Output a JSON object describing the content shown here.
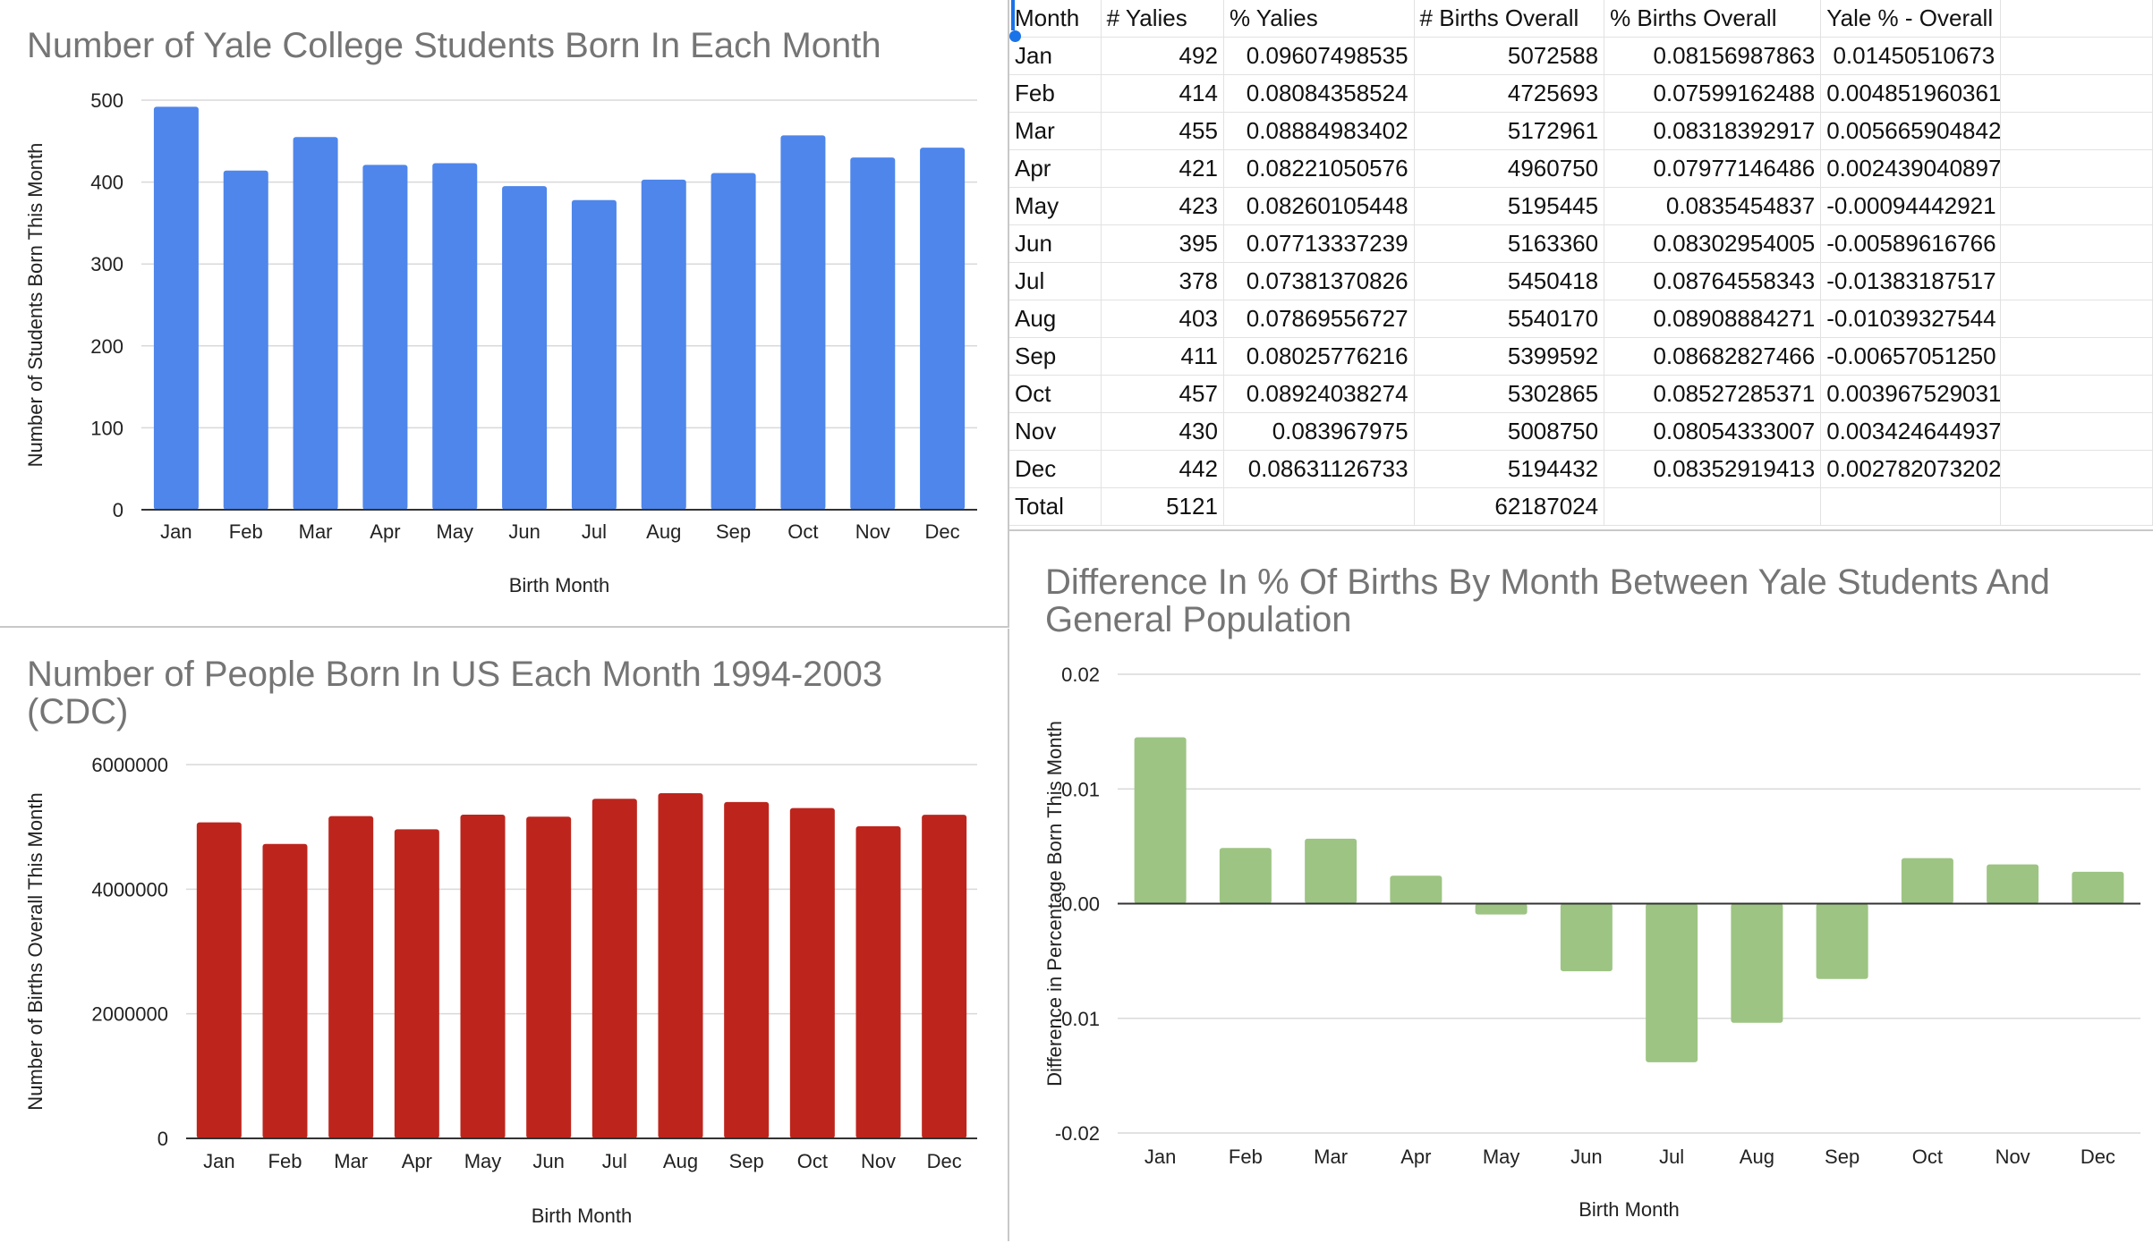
{
  "colors": {
    "yale_bar": "#4e86eb",
    "cdc_bar": "#bd251c",
    "diff_bar": "#9dc483",
    "grid": "#d9d9d9",
    "title": "#757575"
  },
  "chart_data": [
    {
      "type": "bar",
      "title": "Number of Yale College Students Born In Each Month",
      "xlabel": "Birth Month",
      "ylabel": "Number of Students Born This Month",
      "categories": [
        "Jan",
        "Feb",
        "Mar",
        "Apr",
        "May",
        "Jun",
        "Jul",
        "Aug",
        "Sep",
        "Oct",
        "Nov",
        "Dec"
      ],
      "values": [
        492,
        414,
        455,
        421,
        423,
        395,
        378,
        403,
        411,
        457,
        430,
        442
      ],
      "ylim": [
        0,
        500
      ],
      "yticks": [
        "0",
        "100",
        "200",
        "300",
        "400",
        "500"
      ],
      "grid": true
    },
    {
      "type": "bar",
      "title": "Number of People Born In US Each Month 1994-2003 (CDC)",
      "xlabel": "Birth Month",
      "ylabel": "Number of Births Overall This Month",
      "categories": [
        "Jan",
        "Feb",
        "Mar",
        "Apr",
        "May",
        "Jun",
        "Jul",
        "Aug",
        "Sep",
        "Oct",
        "Nov",
        "Dec"
      ],
      "values": [
        5072588,
        4725693,
        5172961,
        4960750,
        5195445,
        5163360,
        5450418,
        5540170,
        5399592,
        5302865,
        5008750,
        5194432
      ],
      "ylim": [
        0,
        6000000
      ],
      "yticks": [
        "0",
        "2000000",
        "4000000",
        "6000000"
      ],
      "grid": true
    },
    {
      "type": "bar",
      "title": "Difference In % Of Births By Month Between Yale Students And General Population",
      "xlabel": "Birth Month",
      "ylabel": "Difference in Percentage Born This Month",
      "categories": [
        "Jan",
        "Feb",
        "Mar",
        "Apr",
        "May",
        "Jun",
        "Jul",
        "Aug",
        "Sep",
        "Oct",
        "Nov",
        "Dec"
      ],
      "values": [
        0.01450510673,
        0.00485196036,
        0.00566590484,
        0.0024390409,
        -0.00094442921,
        -0.00589616766,
        -0.01383187517,
        -0.01039327544,
        -0.0065705125,
        0.00396752903,
        0.00342464494,
        0.0027820732
      ],
      "ylim": [
        -0.02,
        0.02
      ],
      "yticks": [
        "-0.02",
        "-0.01",
        "0.00",
        "0.01",
        "0.02"
      ],
      "grid": true
    }
  ],
  "sheet": {
    "headers": [
      "Month",
      "# Yalies",
      "% Yalies",
      "# Births Overall",
      "% Births Overall",
      "Yale % - Overall %",
      ""
    ],
    "rows": [
      [
        "Jan",
        "492",
        "0.09607498535",
        "5072588",
        "0.08156987863",
        "0.01450510673",
        ""
      ],
      [
        "Feb",
        "414",
        "0.08084358524",
        "4725693",
        "0.07599162488",
        "0.004851960361",
        ""
      ],
      [
        "Mar",
        "455",
        "0.08884983402",
        "5172961",
        "0.08318392917",
        "0.005665904842",
        ""
      ],
      [
        "Apr",
        "421",
        "0.08221050576",
        "4960750",
        "0.07977146486",
        "0.002439040897",
        ""
      ],
      [
        "May",
        "423",
        "0.08260105448",
        "5195445",
        "0.0835454837",
        "-0.00094442921",
        ""
      ],
      [
        "Jun",
        "395",
        "0.07713337239",
        "5163360",
        "0.08302954005",
        "-0.00589616766",
        ""
      ],
      [
        "Jul",
        "378",
        "0.07381370826",
        "5450418",
        "0.08764558343",
        "-0.01383187517",
        ""
      ],
      [
        "Aug",
        "403",
        "0.07869556727",
        "5540170",
        "0.08908884271",
        "-0.01039327544",
        ""
      ],
      [
        "Sep",
        "411",
        "0.08025776216",
        "5399592",
        "0.08682827466",
        "-0.00657051250",
        ""
      ],
      [
        "Oct",
        "457",
        "0.08924038274",
        "5302865",
        "0.08527285371",
        "0.003967529031",
        ""
      ],
      [
        "Nov",
        "430",
        "0.083967975",
        "5008750",
        "0.08054333007",
        "0.003424644937",
        ""
      ],
      [
        "Dec",
        "442",
        "0.08631126733",
        "5194432",
        "0.08352919413",
        "0.002782073202",
        ""
      ],
      [
        "Total",
        "5121",
        "",
        "62187024",
        "",
        "",
        ""
      ]
    ]
  }
}
